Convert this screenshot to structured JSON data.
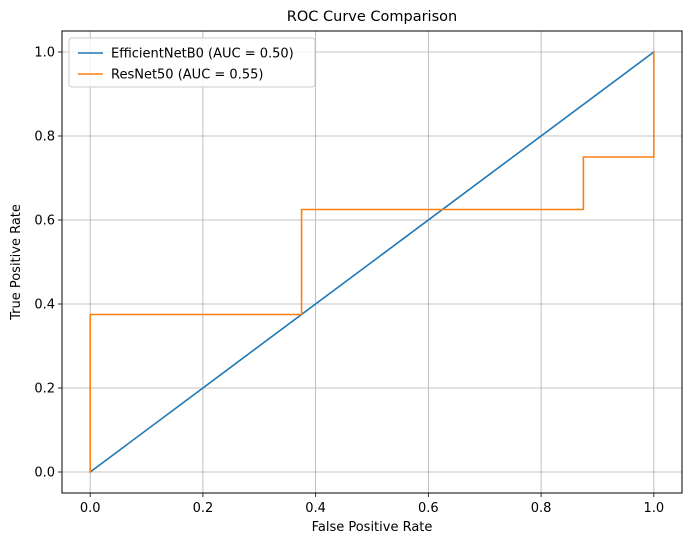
{
  "chart_data": {
    "type": "line",
    "title": "ROC Curve Comparison",
    "xlabel": "False Positive Rate",
    "ylabel": "True Positive Rate",
    "xlim": [
      -0.05,
      1.05
    ],
    "ylim": [
      -0.05,
      1.05
    ],
    "xticks": [
      0.0,
      0.2,
      0.4,
      0.6,
      0.8,
      1.0
    ],
    "yticks": [
      0.0,
      0.2,
      0.4,
      0.6,
      0.8,
      1.0
    ],
    "xtick_labels": [
      "0.0",
      "0.2",
      "0.4",
      "0.6",
      "0.8",
      "1.0"
    ],
    "ytick_labels": [
      "0.0",
      "0.2",
      "0.4",
      "0.6",
      "0.8",
      "1.0"
    ],
    "grid": true,
    "legend_position": "top-left",
    "series": [
      {
        "name": "EfficientNetB0 (AUC = 0.50)",
        "color": "#1f77b4",
        "x": [
          0.0,
          1.0
        ],
        "y": [
          0.0,
          1.0
        ]
      },
      {
        "name": "ResNet50 (AUC = 0.55)",
        "color": "#ff7f0e",
        "x": [
          0.0,
          0.0,
          0.375,
          0.375,
          0.875,
          0.875,
          1.0,
          1.0
        ],
        "y": [
          0.0,
          0.375,
          0.375,
          0.625,
          0.625,
          0.75,
          0.75,
          1.0
        ]
      }
    ]
  }
}
